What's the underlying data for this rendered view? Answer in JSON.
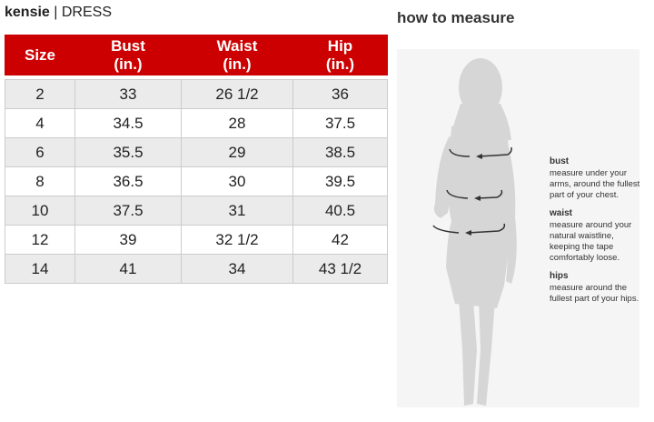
{
  "brand": "kensie",
  "separator": "|",
  "category": "DRESS",
  "table": {
    "headers": [
      [
        "Size"
      ],
      [
        "Bust",
        "(in.)"
      ],
      [
        "Waist",
        "(in.)"
      ],
      [
        "Hip",
        "(in.)"
      ]
    ],
    "rows": [
      [
        "2",
        "33",
        "26 1/2",
        "36"
      ],
      [
        "4",
        "34.5",
        "28",
        "37.5"
      ],
      [
        "6",
        "35.5",
        "29",
        "38.5"
      ],
      [
        "8",
        "36.5",
        "30",
        "39.5"
      ],
      [
        "10",
        "37.5",
        "31",
        "40.5"
      ],
      [
        "12",
        "39",
        "32 1/2",
        "42"
      ],
      [
        "14",
        "41",
        "34",
        "43 1/2"
      ]
    ],
    "header_color": "#cc0000"
  },
  "how_to": {
    "title": "how to measure",
    "items": [
      {
        "label": "bust",
        "text": "measure under your arms, around the fullest part of your chest."
      },
      {
        "label": "waist",
        "text": "measure around your natural waistline, keeping the tape comfortably loose."
      },
      {
        "label": "hips",
        "text": "measure around the fullest part of your hips."
      }
    ]
  }
}
